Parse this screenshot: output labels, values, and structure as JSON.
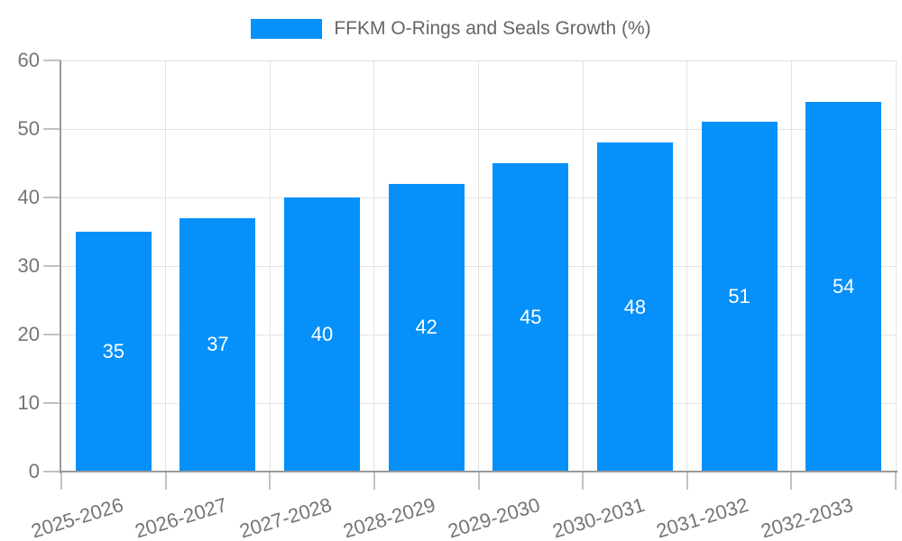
{
  "legend": {
    "label": "FFKM O-Rings and Seals Growth (%)"
  },
  "colors": {
    "bar": "#0590fa",
    "grid": "#e3e3e3",
    "axis": "#9a9a9a",
    "tick": "#c2c2c2",
    "tick_text": "#757575",
    "title_text": "#666666",
    "bar_label_text": "#ffffff",
    "background": "#ffffff"
  },
  "chart_data": {
    "type": "bar",
    "title": "FFKM O-Rings and Seals Growth (%)",
    "categories": [
      "2025-2026",
      "2026-2027",
      "2027-2028",
      "2028-2029",
      "2029-2030",
      "2030-2031",
      "2031-2032",
      "2032-2033"
    ],
    "values": [
      35,
      37,
      40,
      42,
      45,
      48,
      51,
      54
    ],
    "bar_labels": [
      "35",
      "37",
      "40",
      "42",
      "45",
      "48",
      "51",
      "54"
    ],
    "xlabel": "",
    "ylabel": "",
    "ylim": [
      0,
      60
    ],
    "ytick_step": 10,
    "ytick_labels": [
      "0",
      "10",
      "20",
      "30",
      "40",
      "50",
      "60"
    ],
    "grid": true,
    "legend_position": "top"
  }
}
